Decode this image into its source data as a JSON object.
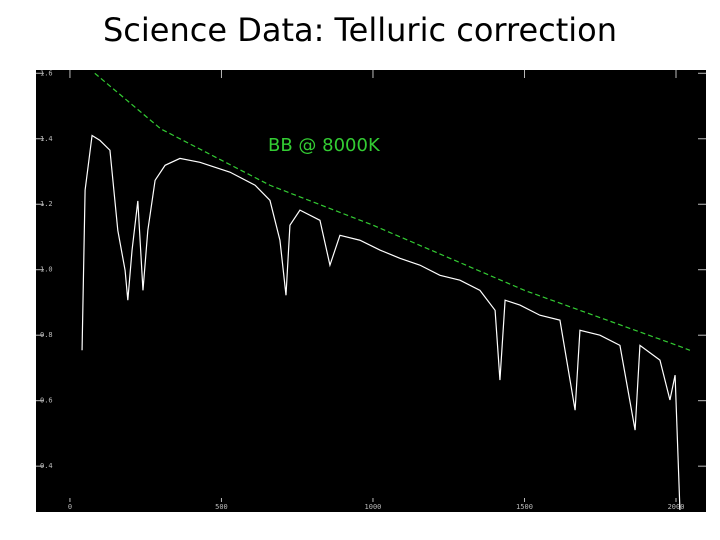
{
  "chart_data": {
    "type": "line",
    "title": "Science Data: Telluric correction",
    "annotation": "BB @ 8000K",
    "annotation_color": "#33cc33",
    "xlim": [
      -112,
      2099
    ],
    "ylim": [
      0.26,
      1.61
    ],
    "xticks": [
      0,
      500,
      1000,
      1500,
      2000
    ],
    "yticks": [
      {
        "value": 0.4,
        "label": "0.4"
      },
      {
        "value": 0.6,
        "label": "0.6"
      },
      {
        "value": 0.8,
        "label": "0.8"
      },
      {
        "value": 1,
        "label": "1.0"
      },
      {
        "value": 1.2,
        "label": "1.2"
      },
      {
        "value": 1.4,
        "label": "1.4"
      },
      {
        "value": 1.6,
        "label": "1.6"
      }
    ],
    "grid": false,
    "series": [
      {
        "color": "#ffffff",
        "style": "solid",
        "x": [
          40,
          50,
          73,
          99,
          132,
          158,
          182,
          191,
          205,
          224,
          241,
          257,
          281,
          314,
          363,
          429,
          528,
          611,
          660,
          693,
          713,
          726,
          759,
          825,
          858,
          891,
          957,
          1023,
          1089,
          1155,
          1221,
          1287,
          1353,
          1403,
          1419,
          1436,
          1485,
          1551,
          1617,
          1667,
          1683,
          1749,
          1815,
          1865,
          1881,
          1947,
          1980,
          1997,
          2013
        ],
        "values": [
          0.754,
          1.243,
          1.41,
          1.395,
          1.365,
          1.12,
          0.998,
          0.907,
          1.06,
          1.21,
          0.937,
          1.12,
          1.273,
          1.319,
          1.34,
          1.328,
          1.298,
          1.258,
          1.212,
          1.09,
          0.922,
          1.136,
          1.182,
          1.151,
          1.014,
          1.105,
          1.09,
          1.06,
          1.035,
          1.014,
          0.983,
          0.968,
          0.937,
          0.876,
          0.663,
          0.907,
          0.892,
          0.861,
          0.846,
          0.571,
          0.815,
          0.8,
          0.769,
          0.51,
          0.769,
          0.724,
          0.602,
          0.678,
          0.266
        ]
      },
      {
        "color": "#33cc33",
        "style": "dashed",
        "x": [
          82,
          300,
          660,
          1000,
          1500,
          2000,
          2046
        ],
        "values": [
          1.6,
          1.43,
          1.258,
          1.136,
          0.937,
          0.77,
          0.754
        ]
      }
    ]
  }
}
